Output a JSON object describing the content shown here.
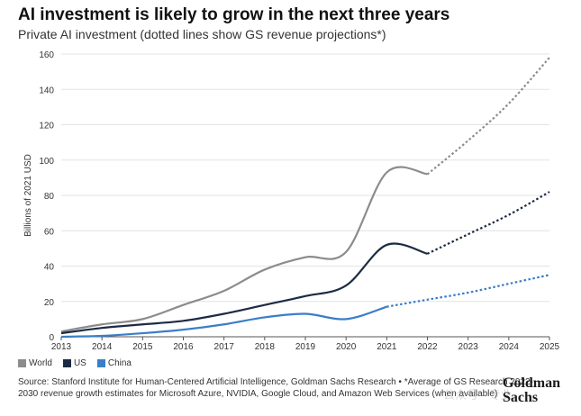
{
  "header": {
    "title": "AI investment is likely to grow in the next three years",
    "subtitle": "Private AI investment (dotted lines show GS revenue projections*)"
  },
  "legend": [
    {
      "label": "World",
      "color": "#8c8c8c"
    },
    {
      "label": "US",
      "color": "#1c2b45"
    },
    {
      "label": "China",
      "color": "#3a7ec8"
    }
  ],
  "footer": {
    "source": "Source: Stanford Institute for Human-Centered Artificial Intelligence, Goldman Sachs Research • *Average of GS Research 2022-2030 revenue growth estimates for Microsoft Azure, NVIDIA, Google Cloud, and Amazon Web Services (when available)",
    "logo_line1": "Goldman",
    "logo_line2": "Sachs",
    "watermark": "公众号 · 专业"
  },
  "chart_data": {
    "type": "line",
    "title": "AI investment is likely to grow in the next three years",
    "subtitle": "Private AI investment (dotted lines show GS revenue projections*)",
    "xlabel": "",
    "ylabel": "Billions of 2021 USD",
    "x": [
      2013,
      2014,
      2015,
      2016,
      2017,
      2018,
      2019,
      2020,
      2021,
      2022,
      2023,
      2024,
      2025
    ],
    "ylim": [
      0,
      160
    ],
    "yticks": [
      0,
      20,
      40,
      60,
      80,
      100,
      120,
      140,
      160
    ],
    "grid": true,
    "legend_position": "bottom-left",
    "projection_start": 2022,
    "series": [
      {
        "name": "World",
        "color": "#8c8c8c",
        "values": [
          3,
          7,
          10,
          18,
          26,
          38,
          45,
          48,
          93,
          92,
          111,
          132,
          158
        ]
      },
      {
        "name": "US",
        "color": "#1c2b45",
        "values": [
          2,
          5,
          7,
          9,
          13,
          18,
          23,
          29,
          52,
          47,
          58,
          69,
          82
        ]
      },
      {
        "name": "China",
        "color": "#3a7ec8",
        "values": [
          0,
          0.5,
          2,
          4,
          7,
          11,
          13,
          10,
          17,
          21,
          25,
          30,
          35
        ]
      }
    ]
  }
}
